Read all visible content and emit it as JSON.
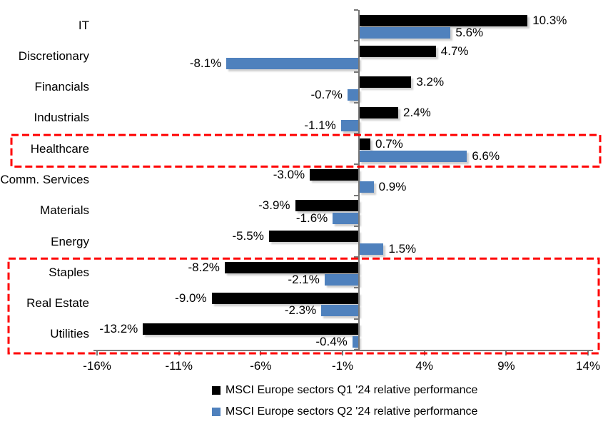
{
  "chart_data": {
    "type": "bar",
    "orientation": "horizontal",
    "title": "",
    "categories": [
      "IT",
      "Discretionary",
      "Financials",
      "Industrials",
      "Healthcare",
      "Comm. Services",
      "Materials",
      "Energy",
      "Staples",
      "Real Estate",
      "Utilities"
    ],
    "series": [
      {
        "name": "MSCI Europe sectors Q1 '24 relative performance",
        "color": "#000000",
        "values": [
          10.3,
          4.7,
          3.2,
          2.4,
          0.7,
          -3.0,
          -3.9,
          -5.5,
          -8.2,
          -9.0,
          -13.2
        ],
        "labels": [
          "10.3%",
          "4.7%",
          "3.2%",
          "2.4%",
          "0.7%",
          "-3.0%",
          "-3.9%",
          "-5.5%",
          "-8.2%",
          "-9.0%",
          "-13.2%"
        ]
      },
      {
        "name": "MSCI Europe sectors Q2 '24 relative performance",
        "color": "#4F81BD",
        "values": [
          5.6,
          -8.1,
          -0.7,
          -1.1,
          6.6,
          0.9,
          -1.6,
          1.5,
          -2.1,
          -2.3,
          -0.4
        ],
        "labels": [
          "5.6%",
          "-8.1%",
          "-0.7%",
          "-1.1%",
          "6.6%",
          "0.9%",
          "-1.6%",
          "1.5%",
          "-2.1%",
          "-2.3%",
          "-0.4%"
        ]
      }
    ],
    "x_axis": {
      "tick_labels": [
        "-16%",
        "-11%",
        "-6%",
        "-1%",
        "4%",
        "9%",
        "14%"
      ],
      "tick_values": [
        -16,
        -11,
        -6,
        -1,
        4,
        9,
        14
      ],
      "range": [
        -16,
        14
      ]
    },
    "grid": false,
    "legend_position": "bottom"
  },
  "annotations": {
    "highlight_boxes": [
      {
        "categories": [
          "Healthcare"
        ],
        "color": "#FF0000",
        "style": "dashed"
      },
      {
        "categories": [
          "Staples",
          "Real Estate",
          "Utilities"
        ],
        "color": "#FF0000",
        "style": "dashed"
      }
    ]
  },
  "colors": {
    "q1_bar": "#000000",
    "q2_bar": "#4F81BD",
    "highlight": "#FF0000",
    "axis": "#777777",
    "text": "#000000"
  }
}
